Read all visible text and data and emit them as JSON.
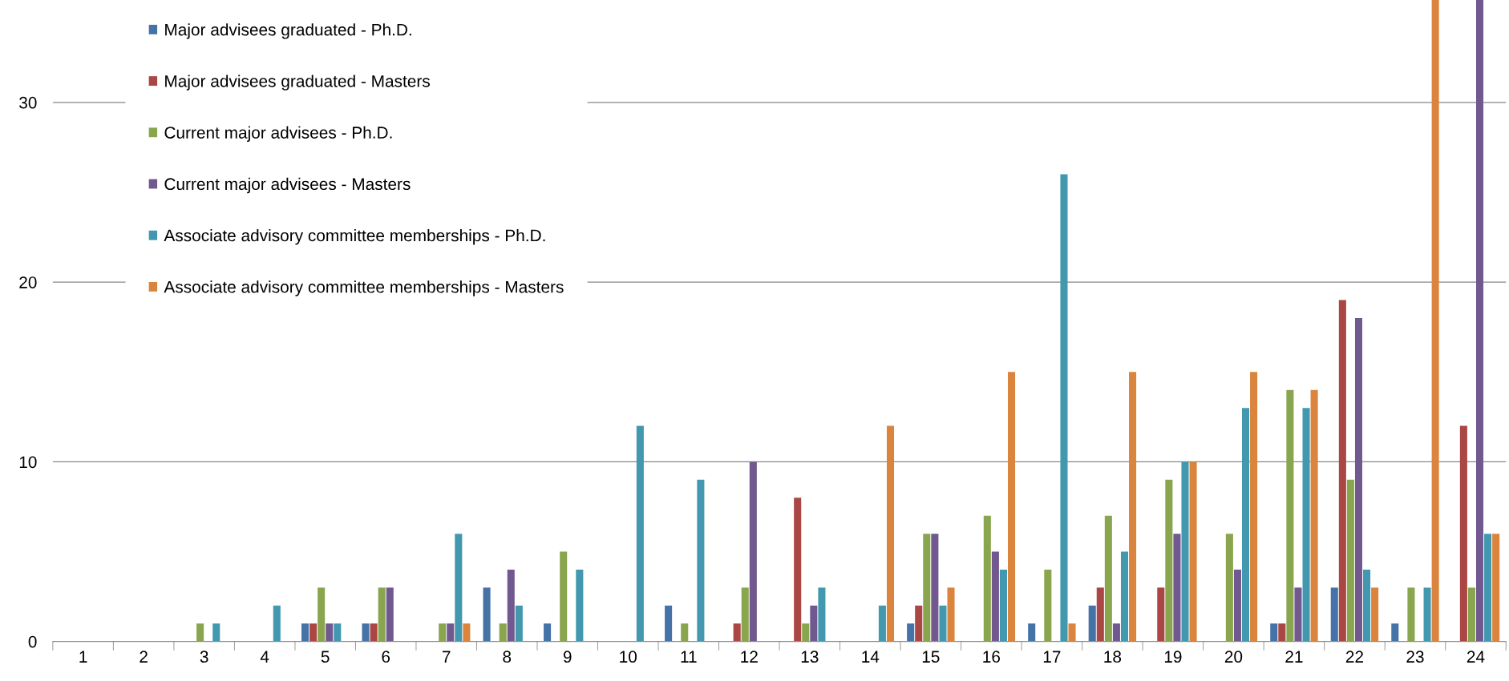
{
  "chart_data": {
    "type": "bar",
    "categories": [
      "1",
      "2",
      "3",
      "4",
      "5",
      "6",
      "7",
      "8",
      "9",
      "10",
      "11",
      "12",
      "13",
      "14",
      "15",
      "16",
      "17",
      "18",
      "19",
      "20",
      "21",
      "22",
      "23",
      "24"
    ],
    "series": [
      {
        "name": "Major advisees graduated - Ph.D.",
        "color": "#4572a7",
        "values": [
          0,
          0,
          0,
          0,
          1,
          1,
          0,
          3,
          1,
          0,
          2,
          0,
          0,
          0,
          1,
          0,
          1,
          2,
          0,
          0,
          1,
          3,
          1,
          0
        ]
      },
      {
        "name": "Major advisees graduated - Masters",
        "color": "#aa4643",
        "values": [
          0,
          0,
          0,
          0,
          1,
          1,
          0,
          0,
          0,
          0,
          0,
          1,
          8,
          0,
          2,
          0,
          0,
          3,
          3,
          0,
          1,
          19,
          0,
          12
        ]
      },
      {
        "name": "Current major advisees - Ph.D.",
        "color": "#89a54e",
        "values": [
          0,
          0,
          1,
          0,
          3,
          3,
          1,
          1,
          5,
          0,
          1,
          3,
          1,
          0,
          6,
          7,
          4,
          7,
          9,
          6,
          14,
          9,
          3,
          3
        ]
      },
      {
        "name": "Current major advisees - Masters",
        "color": "#71588f",
        "values": [
          0,
          0,
          0,
          0,
          1,
          3,
          1,
          4,
          0,
          0,
          0,
          10,
          2,
          0,
          6,
          5,
          0,
          1,
          6,
          4,
          3,
          18,
          0,
          35.7
        ]
      },
      {
        "name": "Associate advisory committee memberships - Ph.D.",
        "color": "#4198af",
        "values": [
          0,
          0,
          1,
          2,
          1,
          0,
          6,
          2,
          4,
          12,
          9,
          0,
          3,
          2,
          2,
          4,
          26,
          5,
          10,
          13,
          13,
          4,
          3,
          6
        ]
      },
      {
        "name": "Associate advisory committee memberships - Masters",
        "color": "#db843d",
        "values": [
          0,
          0,
          0,
          0,
          0,
          0,
          1,
          0,
          0,
          0,
          0,
          0,
          0,
          12,
          3,
          15,
          1,
          15,
          10,
          15,
          14,
          3,
          35.7,
          6
        ]
      }
    ],
    "ylim": [
      0,
      35.7
    ],
    "yticks": [
      0,
      10,
      20,
      30
    ],
    "grid": "y",
    "legend": "top left"
  }
}
